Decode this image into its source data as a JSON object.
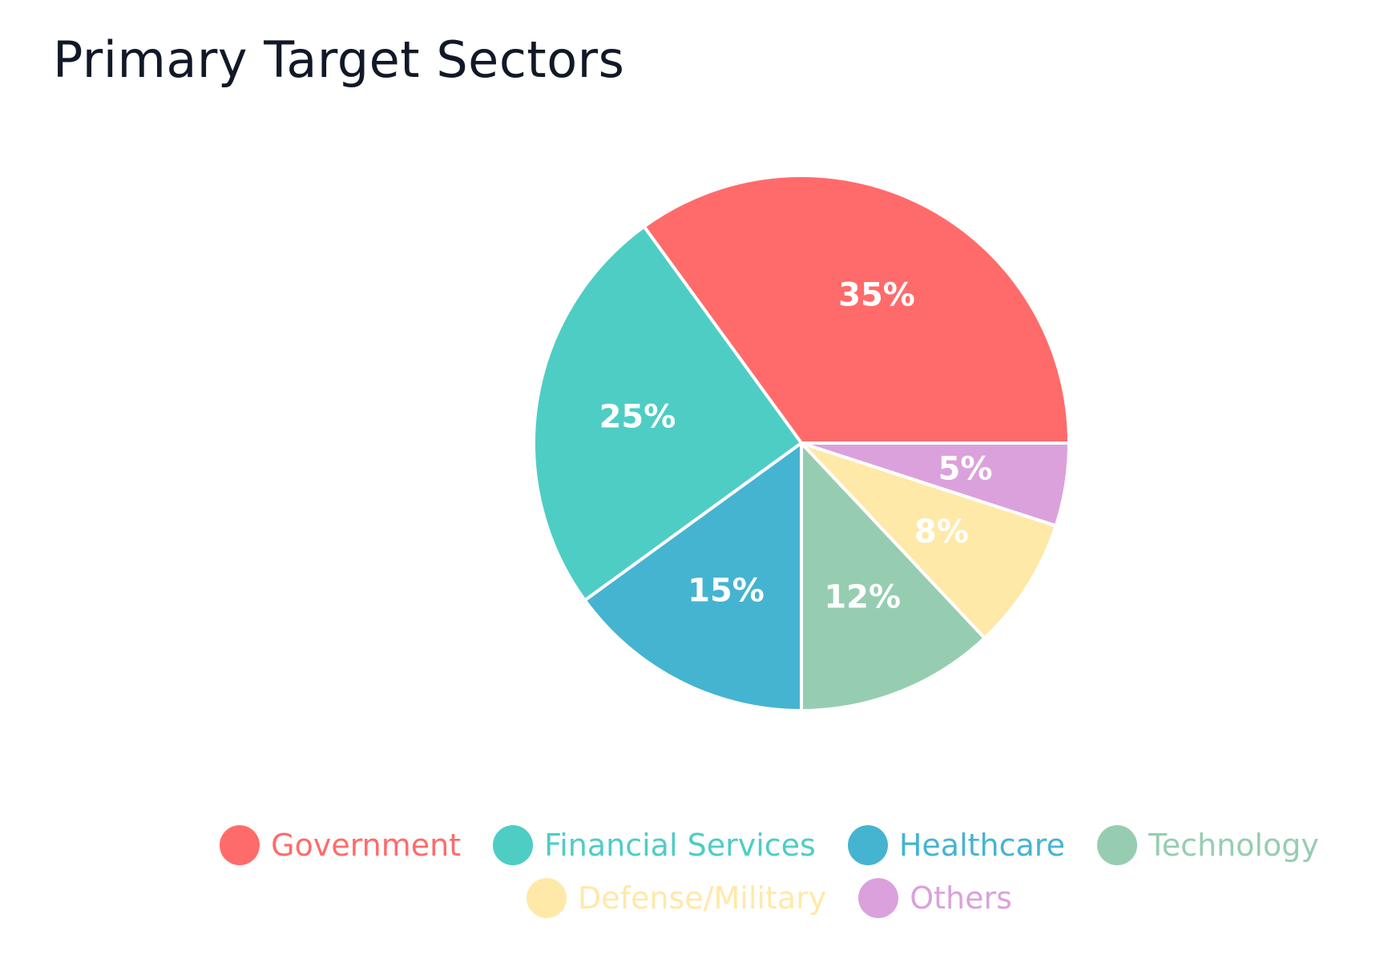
{
  "chart_data": {
    "type": "pie",
    "title": "Primary Target Sectors",
    "categories": [
      "Government",
      "Financial Services",
      "Healthcare",
      "Technology",
      "Defense/Military",
      "Others"
    ],
    "values": [
      35,
      25,
      15,
      12,
      8,
      5
    ],
    "labels": [
      "35%",
      "25%",
      "15%",
      "12%",
      "8%",
      "5%"
    ],
    "colors": [
      "#ff6b6b",
      "#4ecdc4",
      "#45b4d1",
      "#96cdb1",
      "#ffe9a8",
      "#dba1dc"
    ],
    "legend_position": "bottom"
  }
}
